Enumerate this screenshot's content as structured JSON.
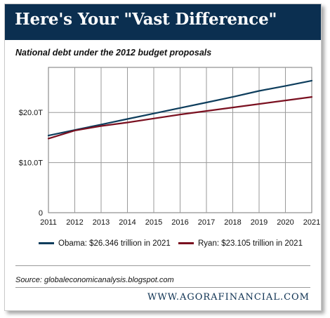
{
  "header": {
    "title": "Here's Your \"Vast Difference\""
  },
  "footer": {
    "site": "WWW.AGORAFINANCIAL.COM"
  },
  "source": "Source: globaleconomicanalysis.blogspot.com",
  "colors": {
    "header_bg": "#0b2f50",
    "obama": "#0d3d5c",
    "ryan": "#7a1020"
  },
  "chart_data": {
    "type": "line",
    "title": "National debt under the 2012 budget proposals",
    "xlabel": "",
    "ylabel": "",
    "x": [
      2011,
      2012,
      2013,
      2014,
      2015,
      2016,
      2017,
      2018,
      2019,
      2020,
      2021
    ],
    "yticks": [
      {
        "value": 0,
        "label": "0"
      },
      {
        "value": 10,
        "label": "$10.0T"
      },
      {
        "value": 20,
        "label": "$20.0T"
      }
    ],
    "ylim": [
      0,
      29
    ],
    "grid": true,
    "legend_position": "bottom",
    "series": [
      {
        "name": "Obama: $26.346 trillion in 2021",
        "color": "#0d3d5c",
        "values": [
          15.4,
          16.5,
          17.6,
          18.7,
          19.8,
          20.9,
          22.0,
          23.1,
          24.3,
          25.3,
          26.346
        ]
      },
      {
        "name": "Ryan: $23.105 trillion in 2021",
        "color": "#7a1020",
        "values": [
          14.8,
          16.4,
          17.3,
          18.0,
          18.8,
          19.6,
          20.3,
          21.0,
          21.7,
          22.4,
          23.105
        ]
      }
    ]
  }
}
